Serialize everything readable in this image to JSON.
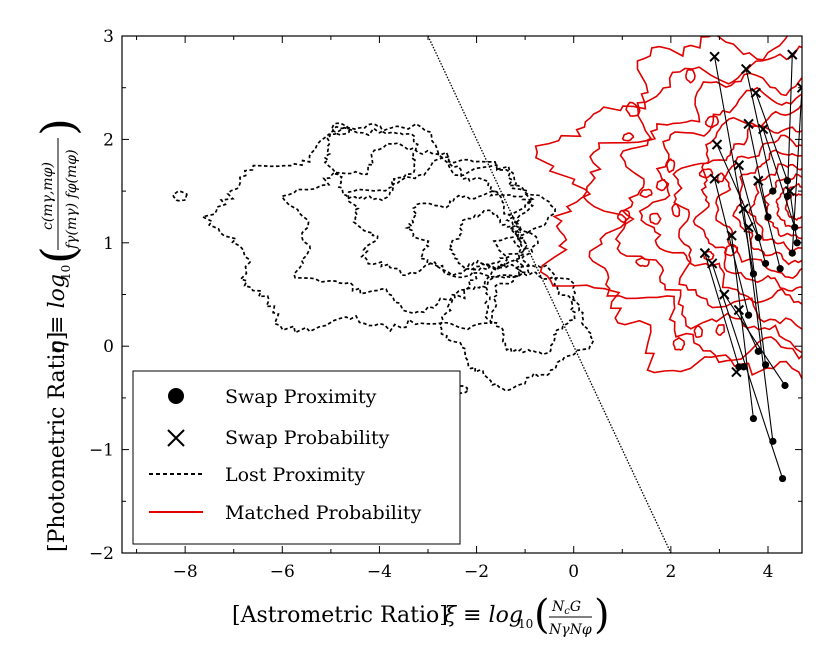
{
  "chart_data": {
    "type": "scatter",
    "xlabel": "[Astrometric Ratio] ξ ≡ log₁₀(N_cG / (N_γ N_φ))",
    "xlabel_text": "[Astrometric Ratio]",
    "xlabel_sym": "ξ ≡ log",
    "xlabel_frac_num": "N",
    "xlabel_frac_num_sub": "c",
    "xlabel_frac_num_tail": "G",
    "xlabel_frac_den": "NγNφ",
    "ylabel": "[Photometric Ratio] η ≡ log₁₀(c(m_γ,m_φ) / (f_γ(m_γ) f_φ(m_φ)))",
    "ylabel_text": "[Photometric Ratio]",
    "ylabel_sym": "η ≡ log",
    "ylabel_frac_num": "c(mγ,mφ)",
    "ylabel_frac_den": "fγ(mγ) fφ(mφ)",
    "log_sub": "10",
    "xlim": [
      -9.3,
      4.7
    ],
    "ylim": [
      -2,
      3
    ],
    "xticks": [
      -8,
      -6,
      -4,
      -2,
      0,
      2,
      4
    ],
    "xtick_labels": [
      "−8",
      "−6",
      "−4",
      "−2",
      "0",
      "2",
      "4"
    ],
    "yticks": [
      -2,
      -1,
      0,
      1,
      2,
      3
    ],
    "ytick_labels": [
      "−2",
      "−1",
      "0",
      "1",
      "2",
      "3"
    ],
    "legend": [
      {
        "label": "Swap Proximity",
        "marker": "circle"
      },
      {
        "label": "Swap Probability",
        "marker": "x"
      },
      {
        "label": "Lost Proximity",
        "marker": "dashed"
      },
      {
        "label": "Matched Probability",
        "marker": "red-line"
      }
    ],
    "legend_position": "lower-left",
    "divider_line": {
      "x": [
        -3.0,
        2.0
      ],
      "y": [
        3,
        -2
      ],
      "style": "dotted"
    },
    "series": [
      {
        "name": "Swap pairs (Probability x → Proximity •)",
        "pairs": [
          [
            2.9,
            2.8,
            3.7,
            0.7
          ],
          [
            3.55,
            2.68,
            4.1,
            1.5
          ],
          [
            3.75,
            2.45,
            4.4,
            1.6
          ],
          [
            4.5,
            2.82,
            4.4,
            1.45
          ],
          [
            3.6,
            2.15,
            4.0,
            1.25
          ],
          [
            3.9,
            2.1,
            4.55,
            1.15
          ],
          [
            2.95,
            1.95,
            3.8,
            1.05
          ],
          [
            3.4,
            1.75,
            3.95,
            0.8
          ],
          [
            2.9,
            1.62,
            3.6,
            0.3
          ],
          [
            3.8,
            1.6,
            4.25,
            0.75
          ],
          [
            3.25,
            1.07,
            3.7,
            -0.7
          ],
          [
            3.5,
            1.33,
            4.1,
            -0.92
          ],
          [
            2.7,
            0.9,
            3.4,
            -0.2
          ],
          [
            2.85,
            0.8,
            4.3,
            -1.28
          ],
          [
            3.1,
            0.5,
            4.35,
            -0.38
          ],
          [
            3.6,
            1.15,
            3.95,
            -0.18
          ],
          [
            3.4,
            0.35,
            3.8,
            -0.05
          ],
          [
            3.35,
            -0.25,
            3.5,
            -0.2
          ],
          [
            4.45,
            1.5,
            4.6,
            1.0
          ],
          [
            4.7,
            2.5,
            4.5,
            0.9
          ]
        ]
      },
      {
        "name": "Lost Proximity",
        "style": "dashed-black-contours",
        "x_range": [
          -8.3,
          0.6
        ],
        "y_range": [
          -0.6,
          2.4
        ]
      },
      {
        "name": "Matched Probability",
        "style": "red-contours",
        "center": [
          4.5,
          1.35
        ],
        "x_range": [
          -0.4,
          4.7
        ],
        "y_range": [
          -1.1,
          3.0
        ]
      }
    ]
  }
}
